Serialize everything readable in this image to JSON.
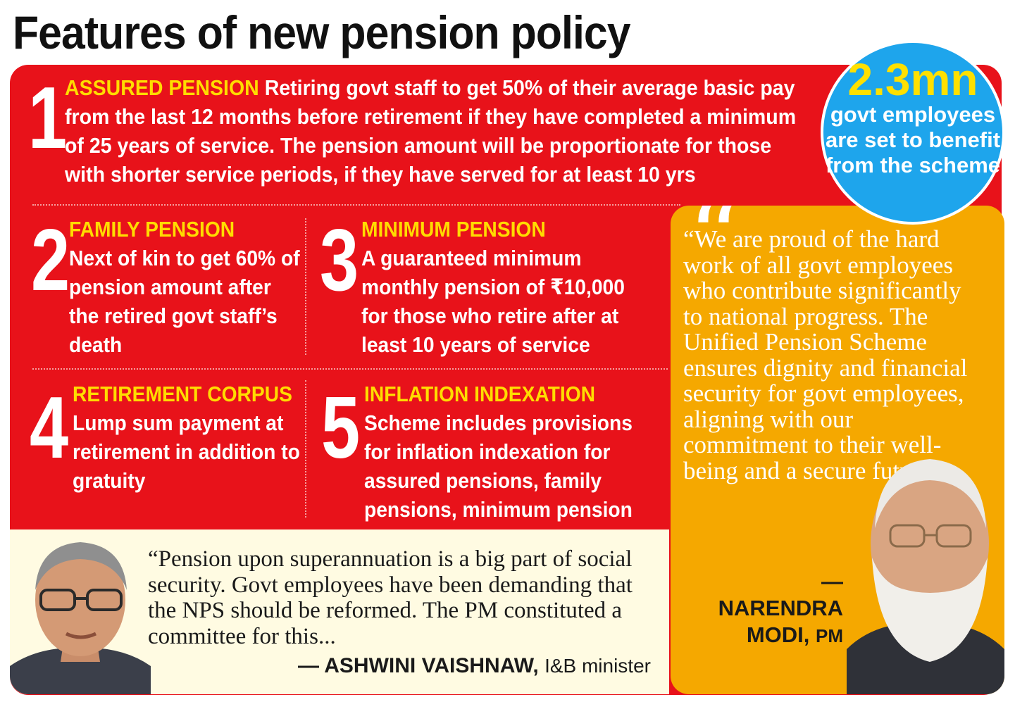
{
  "title": "Features of new pension policy",
  "items": [
    {
      "number": "1",
      "heading": "ASSURED PENSION",
      "text": "Retiring govt staff to get 50% of their average basic pay from the last 12 months before retirement if they have completed a minimum of 25 years of service.  The pension amount will be proportionate for those with shorter service periods, if they have served for at least 10 yrs"
    },
    {
      "number": "2",
      "heading": "FAMILY PENSION",
      "text": "Next of kin to get 60% of pension amount after the retired govt staff’s death"
    },
    {
      "number": "3",
      "heading": "MINIMUM PENSION",
      "text": "A guaranteed minimum monthly pension of ₹10,000 for those who retire after at least 10 years of service"
    },
    {
      "number": "4",
      "heading": "RETIREMENT CORPUS",
      "text": "Lump sum payment at retirement in addition to gratuity"
    },
    {
      "number": "5",
      "heading": "INFLATION INDEXATION",
      "text": "Scheme includes provisions for inflation indexation for assured pensions, family pensions, minimum pension"
    }
  ],
  "badge": {
    "value": "2.3mn",
    "caption": "govt employees are set to benefit from the scheme"
  },
  "quote_modi": {
    "text": "“We are proud of the hard work of all govt employees who contribute significantly to national progress. The Unified Pension Scheme ensures dignity and financial security for govt employees, aligning with our commitment to their well-being and a secure future.”",
    "name": "— NARENDRA MODI,",
    "role": "PM"
  },
  "quote_vaishnaw": {
    "text": "“Pension upon superannuation is a big part of social security. Govt employees have been demanding that the NPS should be reformed. The PM constituted a committee for this...",
    "name": "— ASHWINI VAISHNAW,",
    "role": "I&B minister"
  },
  "colors": {
    "panel": "#e8121a",
    "heading": "#ffdc00",
    "badge": "#1ea5ec",
    "badge_value": "#ffe000",
    "modi_box": "#f5a800",
    "cream": "#fffbe2"
  }
}
